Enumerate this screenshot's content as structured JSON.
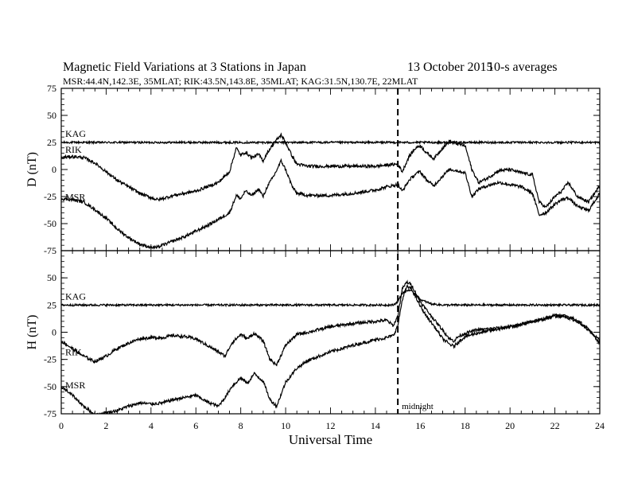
{
  "chart_data": {
    "type": "line",
    "title": "Magnetic Field Variations at 3 Stations in Japan",
    "date": "13 October 2015",
    "averaging": "10-s averages",
    "subtitle": "MSR:44.4N,142.3E, 35MLAT;  RIK:43.5N,143.8E, 35MLAT;  KAG:31.5N,130.7E, 22MLAT",
    "xlabel": "Universal Time",
    "xlim": [
      0,
      24
    ],
    "xticks": [
      "0",
      "2",
      "4",
      "6",
      "8",
      "10",
      "12",
      "14",
      "16",
      "18",
      "20",
      "22",
      "24"
    ],
    "grid": false,
    "vertical_marker": {
      "x": 15,
      "label": "midnight",
      "style": "dashed"
    },
    "panels": [
      {
        "ylabel": "D (nT)",
        "ylim": [
          -75,
          75
        ],
        "yticks": [
          "75",
          "50",
          "25",
          "0",
          "-25",
          "-50",
          "-75"
        ],
        "series": [
          {
            "name": "KAG",
            "x": [
              0,
              2,
              4,
              6,
              8,
              10,
              12,
              14,
              15,
              16,
              18,
              20,
              22,
              24
            ],
            "values": [
              25,
              25,
              25,
              25,
              25,
              25,
              25,
              25,
              25,
              25,
              25,
              25,
              25,
              25
            ]
          },
          {
            "name": "RIK",
            "x": [
              0,
              0.5,
              1,
              1.5,
              2,
              2.5,
              3,
              3.5,
              4,
              4.3,
              4.5,
              5,
              5.5,
              6,
              6.5,
              7,
              7.5,
              7.8,
              8,
              8.2,
              8.5,
              8.8,
              9,
              9.2,
              9.5,
              9.8,
              10,
              10.3,
              10.5,
              11,
              12,
              13,
              14,
              14.5,
              15,
              15.2,
              15.5,
              15.8,
              16,
              16.3,
              16.6,
              17,
              17.3,
              17.6,
              18,
              18.3,
              18.6,
              19,
              19.5,
              20,
              20.5,
              21,
              21.3,
              21.6,
              22,
              22.3,
              22.6,
              23,
              23.5,
              24
            ],
            "values": [
              11,
              12,
              11,
              6,
              -2,
              -10,
              -16,
              -22,
              -26,
              -28,
              -27,
              -24,
              -22,
              -20,
              -16,
              -12,
              -2,
              20,
              13,
              16,
              11,
              14,
              8,
              16,
              25,
              32,
              25,
              12,
              5,
              3,
              3,
              3,
              3,
              4,
              5,
              -2,
              12,
              20,
              22,
              15,
              10,
              20,
              26,
              24,
              22,
              0,
              -12,
              -8,
              -1,
              0,
              -3,
              -5,
              -30,
              -35,
              -25,
              -20,
              -12,
              -25,
              -30,
              -15
            ]
          },
          {
            "name": "MSR",
            "x": [
              0,
              0.5,
              1,
              1.5,
              2,
              2.5,
              3,
              3.5,
              4,
              4.3,
              4.5,
              5,
              5.5,
              6,
              6.5,
              7,
              7.5,
              7.8,
              8,
              8.2,
              8.5,
              8.8,
              9,
              9.2,
              9.5,
              9.8,
              10,
              10.3,
              10.5,
              11,
              12,
              13,
              14,
              14.5,
              15,
              15.2,
              15.5,
              15.8,
              16,
              16.3,
              16.6,
              17,
              17.3,
              17.6,
              18,
              18.3,
              18.6,
              19,
              19.5,
              20,
              20.5,
              21,
              21.3,
              21.6,
              22,
              22.3,
              22.6,
              23,
              23.5,
              24
            ],
            "values": [
              -27,
              -28,
              -30,
              -37,
              -45,
              -55,
              -63,
              -69,
              -72,
              -72,
              -70,
              -66,
              -62,
              -57,
              -52,
              -46,
              -40,
              -24,
              -27,
              -20,
              -24,
              -18,
              -25,
              -15,
              -5,
              8,
              0,
              -16,
              -22,
              -24,
              -24,
              -22,
              -19,
              -16,
              -14,
              -20,
              -10,
              -4,
              -2,
              -10,
              -15,
              -6,
              0,
              -1,
              -3,
              -25,
              -18,
              -15,
              -12,
              -14,
              -16,
              -22,
              -42,
              -40,
              -32,
              -28,
              -26,
              -34,
              -38,
              -22
            ]
          }
        ]
      },
      {
        "ylabel": "H (nT)",
        "ylim": [
          -75,
          75
        ],
        "yticks": [
          "50",
          "25",
          "0",
          "-25",
          "-50",
          "-75"
        ],
        "series": [
          {
            "name": "KAG",
            "x": [
              0,
              2,
              4,
              6,
              8,
              10,
              12,
              14,
              14.8,
              15,
              15.2,
              15.5,
              15.8,
              16,
              16.5,
              17,
              18,
              20,
              22,
              24
            ],
            "values": [
              25,
              25,
              25,
              25,
              25,
              25,
              25,
              25,
              25,
              28,
              36,
              39,
              35,
              30,
              26,
              25,
              25,
              25,
              25,
              25
            ]
          },
          {
            "name": "RIK",
            "x": [
              0,
              0.5,
              1,
              1.5,
              2,
              2.5,
              3,
              3.5,
              4,
              4.5,
              5,
              5.5,
              6,
              6.5,
              7,
              7.3,
              7.6,
              8,
              8.3,
              8.6,
              9,
              9.3,
              9.6,
              10,
              10.5,
              11,
              12,
              13,
              14,
              14.5,
              14.8,
              15,
              15.2,
              15.4,
              15.6,
              15.8,
              16,
              16.3,
              16.6,
              17,
              17.3,
              17.5,
              17.7,
              18,
              18.5,
              19,
              19.5,
              20,
              20.5,
              21,
              21.5,
              22,
              22.5,
              23,
              23.5,
              24
            ],
            "values": [
              -8,
              -15,
              -22,
              -27,
              -22,
              -15,
              -10,
              -6,
              -5,
              -5,
              -3,
              -4,
              -6,
              -12,
              -18,
              -22,
              -10,
              -2,
              -6,
              -1,
              -8,
              -25,
              -30,
              -12,
              -2,
              0,
              5,
              8,
              10,
              11,
              6,
              15,
              40,
              46,
              44,
              36,
              28,
              20,
              12,
              2,
              -6,
              -8,
              -4,
              -1,
              2,
              3,
              4,
              5,
              7,
              10,
              12,
              15,
              14,
              10,
              2,
              -8
            ]
          },
          {
            "name": "MSR",
            "x": [
              0,
              0.5,
              1,
              1.5,
              2,
              2.5,
              3,
              3.5,
              4,
              4.5,
              5,
              5.5,
              6,
              6.5,
              7,
              7.3,
              7.6,
              8,
              8.3,
              8.6,
              9,
              9.3,
              9.6,
              10,
              10.5,
              11,
              12,
              13,
              14,
              14.5,
              14.8,
              15,
              15.2,
              15.4,
              15.6,
              15.8,
              16,
              16.3,
              16.6,
              17,
              17.3,
              17.5,
              17.7,
              18,
              18.5,
              19,
              19.5,
              20,
              20.5,
              21,
              21.5,
              22,
              22.5,
              23,
              23.5,
              24
            ],
            "values": [
              -50,
              -58,
              -68,
              -76,
              -74,
              -72,
              -68,
              -65,
              -66,
              -65,
              -62,
              -60,
              -58,
              -64,
              -68,
              -60,
              -50,
              -42,
              -47,
              -38,
              -45,
              -62,
              -68,
              -46,
              -33,
              -26,
              -18,
              -12,
              -7,
              -5,
              -3,
              6,
              30,
              42,
              40,
              32,
              24,
              14,
              6,
              -6,
              -11,
              -13,
              -9,
              -4,
              -1,
              1,
              3,
              5,
              7,
              10,
              12,
              16,
              15,
              11,
              3,
              -11
            ]
          }
        ]
      }
    ]
  }
}
